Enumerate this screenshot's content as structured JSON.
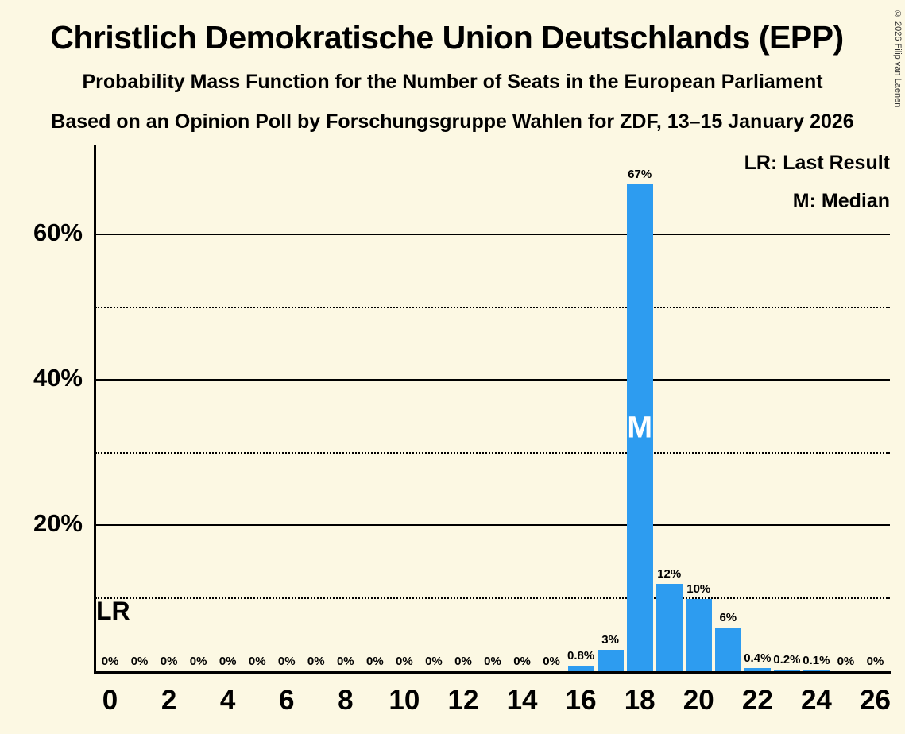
{
  "title": "Christlich Demokratische Union Deutschlands (EPP)",
  "subtitle": "Probability Mass Function for the Number of Seats in the European Parliament",
  "source_line": "Based on an Opinion Poll by Forschungsgruppe Wahlen for ZDF, 13–15 January 2026",
  "copyright": "© 2026 Filip van Laenen",
  "legend": {
    "lr": "LR: Last Result",
    "m": "M: Median"
  },
  "lr_marker": "LR",
  "median_marker": "M",
  "colors": {
    "background": "#FCF8E3",
    "bar": "#2D9CF0",
    "text": "#000000",
    "median_text": "#FFFFFF"
  },
  "chart_data": {
    "type": "bar",
    "title": "Probability Mass Function for the Number of Seats in the European Parliament",
    "xlabel": "",
    "ylabel": "",
    "x": [
      0,
      1,
      2,
      3,
      4,
      5,
      6,
      7,
      8,
      9,
      10,
      11,
      12,
      13,
      14,
      15,
      16,
      17,
      18,
      19,
      20,
      21,
      22,
      23,
      24,
      25,
      26
    ],
    "values": [
      0,
      0,
      0,
      0,
      0,
      0,
      0,
      0,
      0,
      0,
      0,
      0,
      0,
      0,
      0,
      0,
      0.8,
      3,
      67,
      12,
      10,
      6,
      0.4,
      0.2,
      0.1,
      0,
      0
    ],
    "bar_labels": [
      "0%",
      "0%",
      "0%",
      "0%",
      "0%",
      "0%",
      "0%",
      "0%",
      "0%",
      "0%",
      "0%",
      "0%",
      "0%",
      "0%",
      "0%",
      "0%",
      "0.8%",
      "3%",
      "67%",
      "12%",
      "10%",
      "6%",
      "0.4%",
      "0.2%",
      "0.1%",
      "0%",
      "0%"
    ],
    "median_x": 18,
    "ylim": [
      0,
      72.5
    ],
    "yticks_solid": [
      20,
      40,
      60
    ],
    "yticks_dotted": [
      10,
      30,
      50
    ],
    "ytick_format": "percent",
    "xticks": [
      0,
      2,
      4,
      6,
      8,
      10,
      12,
      14,
      16,
      18,
      20,
      22,
      24,
      26
    ],
    "legend_position": "top-right",
    "grid": true
  }
}
